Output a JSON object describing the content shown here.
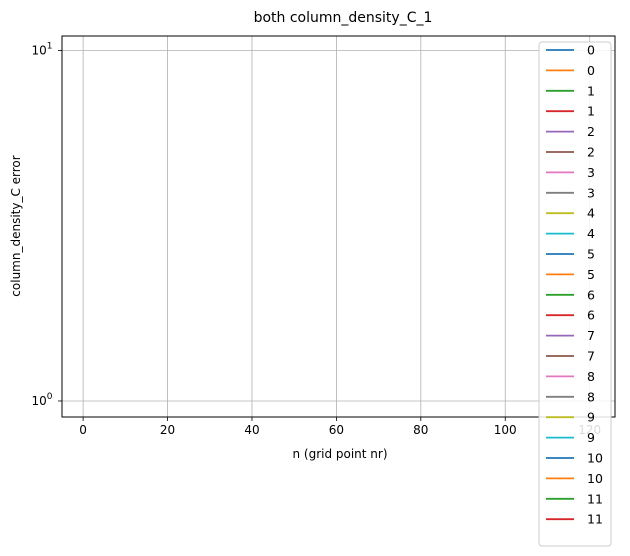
{
  "chart_data": {
    "type": "line",
    "title": "both column_density_C_1",
    "xlabel": "n (grid point nr)",
    "ylabel": "column_density_C error",
    "xlim": [
      -5,
      126
    ],
    "ylim": [
      0.9,
      11
    ],
    "yscale": "log",
    "grid": true,
    "legend_loc": "upper right",
    "x_ticks": [
      {
        "value": 0,
        "label": "0"
      },
      {
        "value": 20,
        "label": "20"
      },
      {
        "value": 40,
        "label": "40"
      },
      {
        "value": 60,
        "label": "60"
      },
      {
        "value": 80,
        "label": "80"
      },
      {
        "value": 100,
        "label": "100"
      },
      {
        "value": 120,
        "label": "120"
      }
    ],
    "y_ticks": [
      {
        "value": 1,
        "base": "10",
        "exp": "0"
      },
      {
        "value": 10,
        "base": "10",
        "exp": "1"
      }
    ],
    "series": [
      {
        "name": "0",
        "color": "#1f77b4",
        "x": [],
        "y": []
      },
      {
        "name": "0",
        "color": "#ff7f0e",
        "x": [],
        "y": []
      },
      {
        "name": "1",
        "color": "#2ca02c",
        "x": [],
        "y": []
      },
      {
        "name": "1",
        "color": "#d62728",
        "x": [],
        "y": []
      },
      {
        "name": "2",
        "color": "#9467bd",
        "x": [],
        "y": []
      },
      {
        "name": "2",
        "color": "#8c564b",
        "x": [],
        "y": []
      },
      {
        "name": "3",
        "color": "#e377c2",
        "x": [],
        "y": []
      },
      {
        "name": "3",
        "color": "#7f7f7f",
        "x": [],
        "y": []
      },
      {
        "name": "4",
        "color": "#bcbd22",
        "x": [],
        "y": []
      },
      {
        "name": "4",
        "color": "#17becf",
        "x": [],
        "y": []
      },
      {
        "name": "5",
        "color": "#1f77b4",
        "x": [],
        "y": []
      },
      {
        "name": "5",
        "color": "#ff7f0e",
        "x": [],
        "y": []
      },
      {
        "name": "6",
        "color": "#2ca02c",
        "x": [],
        "y": []
      },
      {
        "name": "6",
        "color": "#d62728",
        "x": [],
        "y": []
      },
      {
        "name": "7",
        "color": "#9467bd",
        "x": [],
        "y": []
      },
      {
        "name": "7",
        "color": "#8c564b",
        "x": [],
        "y": []
      },
      {
        "name": "8",
        "color": "#e377c2",
        "x": [],
        "y": []
      },
      {
        "name": "8",
        "color": "#7f7f7f",
        "x": [],
        "y": []
      },
      {
        "name": "9",
        "color": "#bcbd22",
        "x": [],
        "y": []
      },
      {
        "name": "9",
        "color": "#17becf",
        "x": [],
        "y": []
      },
      {
        "name": "10",
        "color": "#1f77b4",
        "x": [],
        "y": []
      },
      {
        "name": "10",
        "color": "#ff7f0e",
        "x": [],
        "y": []
      },
      {
        "name": "11",
        "color": "#2ca02c",
        "x": [],
        "y": []
      },
      {
        "name": "11",
        "color": "#d62728",
        "x": [],
        "y": []
      }
    ]
  }
}
